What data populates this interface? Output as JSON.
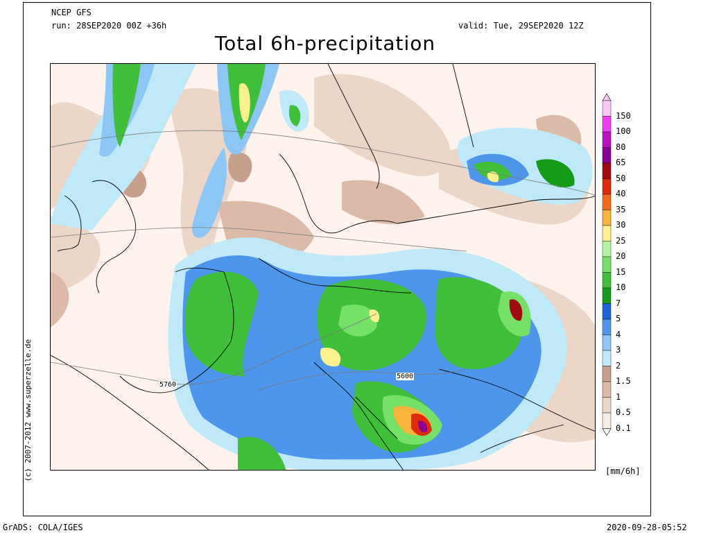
{
  "header": {
    "model": "NCEP GFS",
    "run": "run: 28SEP2020 00Z +36h",
    "valid": "valid: Tue, 29SEP2020 12Z",
    "title": "Total 6h-precipitation"
  },
  "credit": "(c) 2007-2012  www.superzelle.de",
  "footer": {
    "left": "GrADS: COLA/IGES",
    "right": "2020-09-28-05:52"
  },
  "contours": {
    "label_a": "5760",
    "label_b": "5600"
  },
  "legend": {
    "unit": "[mm/6h]",
    "levels": [
      {
        "label": "150",
        "color": "#f9c7f3"
      },
      {
        "label": "100",
        "color": "#ee3df3"
      },
      {
        "label": "80",
        "color": "#bb0fc2"
      },
      {
        "label": "65",
        "color": "#8b0096"
      },
      {
        "label": "50",
        "color": "#a30b12"
      },
      {
        "label": "40",
        "color": "#e02b0b"
      },
      {
        "label": "35",
        "color": "#f36b1a"
      },
      {
        "label": "30",
        "color": "#f9b43e"
      },
      {
        "label": "25",
        "color": "#fdf08f"
      },
      {
        "label": "20",
        "color": "#b4f5a2"
      },
      {
        "label": "15",
        "color": "#76e168"
      },
      {
        "label": "10",
        "color": "#3fbf3a"
      },
      {
        "label": "7",
        "color": "#169b19"
      },
      {
        "label": "5",
        "color": "#2064dc"
      },
      {
        "label": "4",
        "color": "#4e95ec"
      },
      {
        "label": "3",
        "color": "#8dc6f5"
      },
      {
        "label": "2",
        "color": "#bfe9f9"
      },
      {
        "label": "1.5",
        "color": "#c79f8c"
      },
      {
        "label": "1",
        "color": "#dbbba8"
      },
      {
        "label": "0.5",
        "color": "#ebd6c7"
      },
      {
        "label": "0.1",
        "color": "#f9ebe1"
      }
    ]
  }
}
